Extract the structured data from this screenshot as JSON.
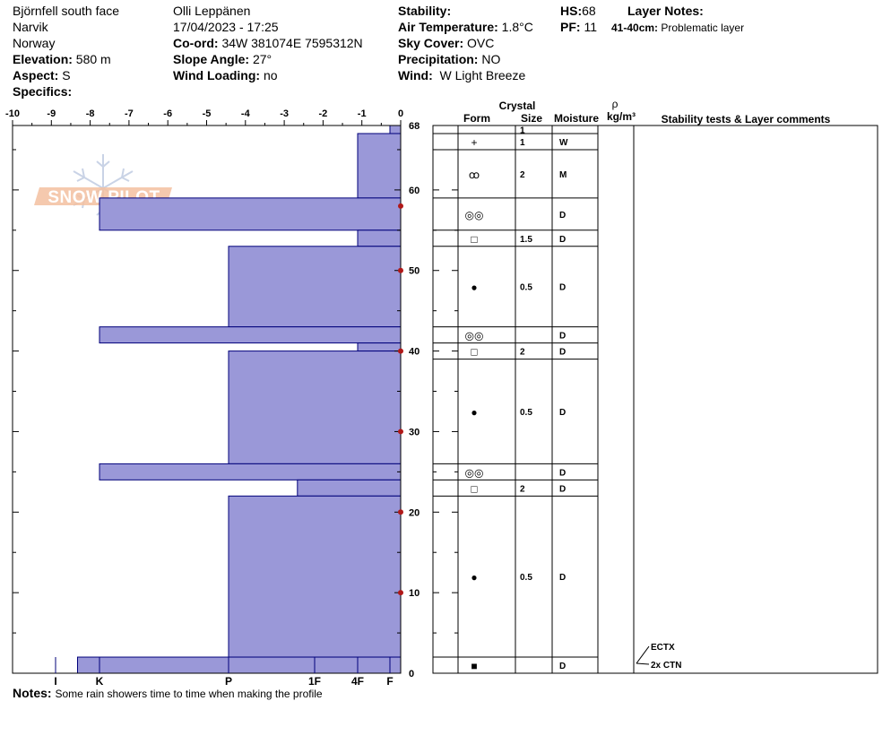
{
  "header": {
    "location": "Björnfell south face",
    "region": "Narvik",
    "country": "Norway",
    "elevation_label": "Elevation:",
    "elevation": "580 m",
    "aspect_label": "Aspect:",
    "aspect": "S",
    "specifics_label": "Specifics:",
    "observer": "Olli Leppänen",
    "datetime": "17/04/2023 - 17:25",
    "coord_label": "Co-ord:",
    "coord": "34W 381074E 7595312N",
    "slope_label": "Slope Angle:",
    "slope": "27°",
    "wind_loading_label": "Wind Loading:",
    "wind_loading": "no",
    "stability_label": "Stability:",
    "air_temp_label": "Air Temperature:",
    "air_temp": "1.8°C",
    "sky_label": "Sky Cover:",
    "sky": "OVC",
    "precip_label": "Precipitation:",
    "precip": "NO",
    "wind_label": "Wind:",
    "wind": "W Light Breeze",
    "hs_label": "HS:",
    "hs": "68",
    "pf_label": "PF:",
    "pf": "11",
    "layer_notes_label": "Layer Notes:",
    "layer_note_range": "41-40cm:",
    "layer_note_text": "Problematic layer"
  },
  "logo": {
    "text": "SNOW PILOT"
  },
  "table_header": {
    "crystal": "Crystal",
    "form": "Form",
    "size": "Size",
    "moisture": "Moisture",
    "rho": "ρ",
    "density_unit": "kg/m³",
    "comments": "Stability tests & Layer comments"
  },
  "notes": {
    "label": "Notes:",
    "text": "Some rain showers time to time when making the profile"
  },
  "chart_data": {
    "type": "snow-profile",
    "temperature_axis": {
      "ticks": [
        "-10",
        "-9",
        "-8",
        "-7",
        "-6",
        "-5",
        "-4",
        "-3",
        "-2",
        "-1",
        "0"
      ],
      "range": [
        -10,
        0
      ]
    },
    "height_axis": {
      "ticks": [
        "0",
        "10",
        "20",
        "30",
        "40",
        "50",
        "60",
        "68"
      ],
      "range": [
        0,
        68
      ]
    },
    "hardness_axis": {
      "labels": [
        "I",
        "K",
        "P",
        "1F",
        "4F",
        "F"
      ],
      "values": [
        5,
        4,
        3,
        2,
        1,
        0.3
      ]
    },
    "hardness_layers": [
      {
        "from": 67,
        "to": 68,
        "hardness": 0.3
      },
      {
        "from": 59,
        "to": 67,
        "hardness": 1
      },
      {
        "from": 55,
        "to": 59,
        "hardness": 4
      },
      {
        "from": 53,
        "to": 55,
        "hardness": 1
      },
      {
        "from": 43,
        "to": 53,
        "hardness": 3
      },
      {
        "from": 41,
        "to": 43,
        "hardness": 4
      },
      {
        "from": 40,
        "to": 41,
        "hardness": 1
      },
      {
        "from": 26,
        "to": 40,
        "hardness": 3
      },
      {
        "from": 24,
        "to": 26,
        "hardness": 4
      },
      {
        "from": 22,
        "to": 24,
        "hardness": 2.2
      },
      {
        "from": 2,
        "to": 22,
        "hardness": 3
      },
      {
        "from": 0,
        "to": 2,
        "hardness": 4.5
      }
    ],
    "temperature_points": [
      {
        "height": 58,
        "temp": 0
      },
      {
        "height": 50,
        "temp": 0
      },
      {
        "height": 40,
        "temp": 0
      },
      {
        "height": 30,
        "temp": 0
      },
      {
        "height": 20,
        "temp": 0
      },
      {
        "height": 10,
        "temp": 0
      }
    ],
    "layers": [
      {
        "from": 67,
        "to": 68,
        "form": "",
        "size": "1",
        "moisture": ""
      },
      {
        "from": 65,
        "to": 67,
        "form": "+",
        "size": "1",
        "moisture": "W"
      },
      {
        "from": 59,
        "to": 65,
        "form": "ꝏ",
        "size": "2",
        "moisture": "M"
      },
      {
        "from": 55,
        "to": 59,
        "form": "◎◎",
        "size": "",
        "moisture": "D"
      },
      {
        "from": 53,
        "to": 55,
        "form": "□",
        "size": "1.5",
        "moisture": "D"
      },
      {
        "from": 43,
        "to": 53,
        "form": "●",
        "size": "0.5",
        "moisture": "D"
      },
      {
        "from": 41,
        "to": 43,
        "form": "◎◎",
        "size": "",
        "moisture": "D"
      },
      {
        "from": 39,
        "to": 41,
        "form": "□",
        "size": "2",
        "moisture": "D"
      },
      {
        "from": 26,
        "to": 39,
        "form": "●",
        "size": "0.5",
        "moisture": "D"
      },
      {
        "from": 24,
        "to": 26,
        "form": "◎◎",
        "size": "",
        "moisture": "D"
      },
      {
        "from": 22,
        "to": 24,
        "form": "□",
        "size": "2",
        "moisture": "D"
      },
      {
        "from": 2,
        "to": 22,
        "form": "●",
        "size": "0.5",
        "moisture": "D"
      },
      {
        "from": 0,
        "to": 2,
        "form": "■",
        "size": "",
        "moisture": "D"
      }
    ],
    "stability_tests": [
      {
        "height": 2,
        "label": "ECTX"
      },
      {
        "height": 2,
        "label": "2x CTN"
      }
    ]
  },
  "colors": {
    "hardness_fill": "#9a98d8",
    "hardness_stroke": "#00007a",
    "temp_marker": "#b01818"
  }
}
